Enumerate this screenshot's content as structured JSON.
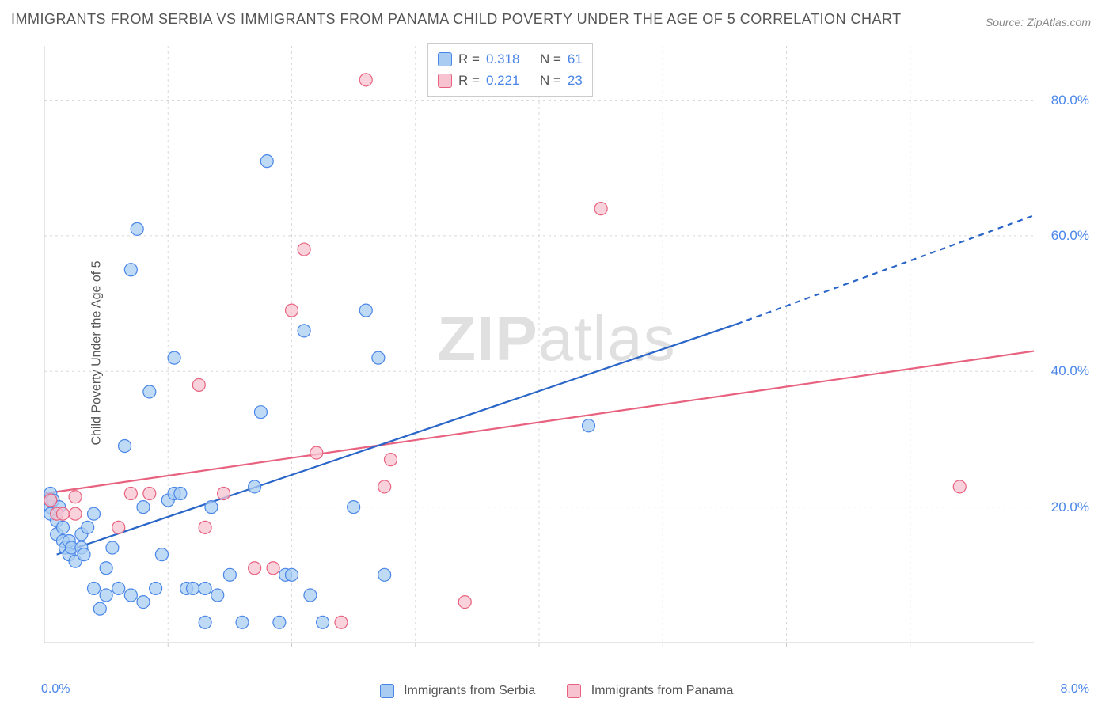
{
  "title": "IMMIGRANTS FROM SERBIA VS IMMIGRANTS FROM PANAMA CHILD POVERTY UNDER THE AGE OF 5 CORRELATION CHART",
  "source": "Source: ZipAtlas.com",
  "ylabel": "Child Poverty Under the Age of 5",
  "watermark_a": "ZIP",
  "watermark_b": "atlas",
  "chart": {
    "type": "scatter",
    "xlim": [
      0,
      8
    ],
    "ylim": [
      0,
      88
    ],
    "x_tick_left": "0.0%",
    "x_tick_right": "8.0%",
    "y_ticks": [
      20,
      40,
      60,
      80
    ],
    "y_tick_labels": [
      "20.0%",
      "40.0%",
      "60.0%",
      "80.0%"
    ],
    "grid_color": "#d8d8d8",
    "axis_color": "#cccccc",
    "background_color": "#ffffff",
    "tick_color": "#4a86e8",
    "marker_radius": 8,
    "marker_stroke_width": 1.2,
    "trend_line_width": 2.2
  },
  "series": [
    {
      "key": "serbia",
      "label": "Immigrants from Serbia",
      "fill": "#a9cdf2",
      "stroke": "#4a86e8",
      "line_color": "#2a66c8",
      "R": "0.318",
      "N": "61",
      "points": [
        [
          0.05,
          21
        ],
        [
          0.05,
          20
        ],
        [
          0.05,
          19
        ],
        [
          0.05,
          22
        ],
        [
          0.07,
          21
        ],
        [
          0.1,
          18
        ],
        [
          0.1,
          16
        ],
        [
          0.12,
          20
        ],
        [
          0.15,
          15
        ],
        [
          0.15,
          17
        ],
        [
          0.17,
          14
        ],
        [
          0.2,
          15
        ],
        [
          0.2,
          13
        ],
        [
          0.22,
          14
        ],
        [
          0.25,
          12
        ],
        [
          0.3,
          14
        ],
        [
          0.3,
          16
        ],
        [
          0.32,
          13
        ],
        [
          0.35,
          17
        ],
        [
          0.4,
          19
        ],
        [
          0.4,
          8
        ],
        [
          0.45,
          5
        ],
        [
          0.5,
          7
        ],
        [
          0.5,
          11
        ],
        [
          0.55,
          14
        ],
        [
          0.6,
          8
        ],
        [
          0.65,
          29
        ],
        [
          0.7,
          7
        ],
        [
          0.7,
          55
        ],
        [
          0.75,
          61
        ],
        [
          0.8,
          6
        ],
        [
          0.8,
          20
        ],
        [
          0.85,
          37
        ],
        [
          0.9,
          8
        ],
        [
          0.95,
          13
        ],
        [
          1.0,
          21
        ],
        [
          1.05,
          22
        ],
        [
          1.1,
          22
        ],
        [
          1.15,
          8
        ],
        [
          1.2,
          8
        ],
        [
          1.3,
          3
        ],
        [
          1.3,
          8
        ],
        [
          1.35,
          20
        ],
        [
          1.4,
          7
        ],
        [
          1.5,
          10
        ],
        [
          1.6,
          3
        ],
        [
          1.7,
          23
        ],
        [
          1.75,
          34
        ],
        [
          1.8,
          71
        ],
        [
          1.9,
          3
        ],
        [
          1.95,
          10
        ],
        [
          2.0,
          10
        ],
        [
          2.1,
          46
        ],
        [
          2.15,
          7
        ],
        [
          2.25,
          3
        ],
        [
          2.5,
          20
        ],
        [
          2.6,
          49
        ],
        [
          2.7,
          42
        ],
        [
          2.75,
          10
        ],
        [
          1.05,
          42
        ],
        [
          4.4,
          32
        ]
      ],
      "trend": {
        "x1": 0.1,
        "y1": 13,
        "x2": 5.6,
        "y2": 47,
        "dash_x1": 5.6,
        "dash_y1": 47,
        "dash_x2": 8.0,
        "dash_y2": 63
      }
    },
    {
      "key": "panama",
      "label": "Immigrants from Panama",
      "fill": "#f7c3d0",
      "stroke": "#e8627f",
      "line_color": "#e8627f",
      "R": "0.221",
      "N": "23",
      "points": [
        [
          0.05,
          21
        ],
        [
          0.1,
          19
        ],
        [
          0.15,
          19
        ],
        [
          0.25,
          21.5
        ],
        [
          0.6,
          17
        ],
        [
          0.7,
          22
        ],
        [
          0.85,
          22
        ],
        [
          1.25,
          38
        ],
        [
          1.3,
          17
        ],
        [
          1.45,
          22
        ],
        [
          1.7,
          11
        ],
        [
          1.85,
          11
        ],
        [
          2.0,
          49
        ],
        [
          2.2,
          28
        ],
        [
          2.1,
          58
        ],
        [
          2.4,
          3
        ],
        [
          2.6,
          83
        ],
        [
          2.75,
          23
        ],
        [
          2.8,
          27
        ],
        [
          3.4,
          6
        ],
        [
          4.5,
          64
        ],
        [
          7.4,
          23
        ],
        [
          0.25,
          19
        ]
      ],
      "trend": {
        "x1": 0.0,
        "y1": 22,
        "x2": 8.0,
        "y2": 43
      }
    }
  ],
  "statbox": {
    "r_label": "R =",
    "n_label": "N ="
  }
}
